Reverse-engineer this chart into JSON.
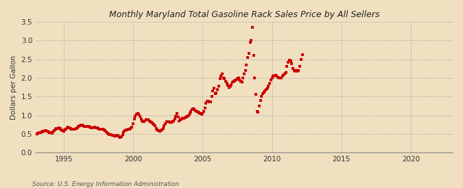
{
  "title": "Monthly Maryland Total Gasoline Rack Sales Price by All Sellers",
  "ylabel": "Dollars per Gallon",
  "source": "Source: U.S. Energy Information Administration",
  "background_color": "#f0e0c0",
  "plot_bg_color": "#f0e0c0",
  "marker_color": "#cc0000",
  "xlim": [
    1993.0,
    2023.0
  ],
  "ylim": [
    0.0,
    3.5
  ],
  "xticks": [
    1995,
    2000,
    2005,
    2010,
    2015,
    2020
  ],
  "yticks": [
    0.0,
    0.5,
    1.0,
    1.5,
    2.0,
    2.5,
    3.0,
    3.5
  ],
  "dates": [
    1993.08,
    1993.17,
    1993.25,
    1993.33,
    1993.42,
    1993.5,
    1993.58,
    1993.67,
    1993.75,
    1993.83,
    1993.92,
    1994.0,
    1994.08,
    1994.17,
    1994.25,
    1994.33,
    1994.42,
    1994.5,
    1994.58,
    1994.67,
    1994.75,
    1994.83,
    1994.92,
    1995.0,
    1995.08,
    1995.17,
    1995.25,
    1995.33,
    1995.42,
    1995.5,
    1995.58,
    1995.67,
    1995.75,
    1995.83,
    1995.92,
    1996.0,
    1996.08,
    1996.17,
    1996.25,
    1996.33,
    1996.42,
    1996.5,
    1996.58,
    1996.67,
    1996.75,
    1996.83,
    1996.92,
    1997.0,
    1997.08,
    1997.17,
    1997.25,
    1997.33,
    1997.42,
    1997.5,
    1997.58,
    1997.67,
    1997.75,
    1997.83,
    1997.92,
    1998.0,
    1998.08,
    1998.17,
    1998.25,
    1998.33,
    1998.42,
    1998.5,
    1998.58,
    1998.67,
    1998.75,
    1998.83,
    1998.92,
    1999.0,
    1999.08,
    1999.17,
    1999.25,
    1999.33,
    1999.42,
    1999.5,
    1999.58,
    1999.67,
    1999.75,
    1999.83,
    1999.92,
    2000.0,
    2000.08,
    2000.17,
    2000.25,
    2000.33,
    2000.42,
    2000.5,
    2000.58,
    2000.67,
    2000.75,
    2000.83,
    2000.92,
    2001.0,
    2001.08,
    2001.17,
    2001.25,
    2001.33,
    2001.42,
    2001.5,
    2001.58,
    2001.67,
    2001.75,
    2001.83,
    2001.92,
    2002.0,
    2002.08,
    2002.17,
    2002.25,
    2002.33,
    2002.42,
    2002.5,
    2002.58,
    2002.67,
    2002.75,
    2002.83,
    2002.92,
    2003.0,
    2003.08,
    2003.17,
    2003.25,
    2003.33,
    2003.42,
    2003.5,
    2003.58,
    2003.67,
    2003.75,
    2003.83,
    2003.92,
    2004.0,
    2004.08,
    2004.17,
    2004.25,
    2004.33,
    2004.42,
    2004.5,
    2004.58,
    2004.67,
    2004.75,
    2004.83,
    2004.92,
    2005.0,
    2005.08,
    2005.17,
    2005.25,
    2005.33,
    2005.42,
    2005.5,
    2005.58,
    2005.67,
    2005.75,
    2005.83,
    2005.92,
    2006.0,
    2006.08,
    2006.17,
    2006.25,
    2006.33,
    2006.42,
    2006.5,
    2006.58,
    2006.67,
    2006.75,
    2006.83,
    2006.92,
    2007.0,
    2007.08,
    2007.17,
    2007.25,
    2007.33,
    2007.42,
    2007.5,
    2007.58,
    2007.67,
    2007.75,
    2007.83,
    2007.92,
    2008.0,
    2008.08,
    2008.17,
    2008.25,
    2008.33,
    2008.42,
    2008.5,
    2008.58,
    2008.67,
    2008.75,
    2008.83,
    2008.92,
    2009.0,
    2009.08,
    2009.17,
    2009.25,
    2009.33,
    2009.42,
    2009.5,
    2009.58,
    2009.67,
    2009.75,
    2009.83,
    2009.92,
    2010.0,
    2010.08,
    2010.17,
    2010.25,
    2010.33,
    2010.42,
    2010.5,
    2010.58,
    2010.67,
    2010.75,
    2010.83,
    2010.92,
    2011.0,
    2011.08,
    2011.17,
    2011.25,
    2011.33,
    2011.42,
    2011.5,
    2011.58,
    2011.67,
    2011.75,
    2011.83,
    2011.92,
    2012.0,
    2012.08,
    2012.17
  ],
  "values": [
    0.5,
    0.52,
    0.53,
    0.54,
    0.55,
    0.57,
    0.57,
    0.58,
    0.58,
    0.57,
    0.56,
    0.54,
    0.53,
    0.52,
    0.55,
    0.58,
    0.62,
    0.64,
    0.65,
    0.66,
    0.64,
    0.6,
    0.58,
    0.57,
    0.6,
    0.63,
    0.67,
    0.68,
    0.67,
    0.65,
    0.63,
    0.62,
    0.62,
    0.63,
    0.65,
    0.67,
    0.7,
    0.72,
    0.73,
    0.73,
    0.72,
    0.7,
    0.7,
    0.7,
    0.7,
    0.7,
    0.68,
    0.67,
    0.67,
    0.68,
    0.68,
    0.67,
    0.66,
    0.65,
    0.63,
    0.62,
    0.62,
    0.62,
    0.6,
    0.58,
    0.55,
    0.52,
    0.5,
    0.48,
    0.47,
    0.46,
    0.46,
    0.45,
    0.45,
    0.46,
    0.46,
    0.42,
    0.4,
    0.43,
    0.48,
    0.55,
    0.58,
    0.6,
    0.61,
    0.62,
    0.63,
    0.65,
    0.68,
    0.78,
    0.9,
    0.98,
    1.03,
    1.05,
    1.02,
    0.98,
    0.9,
    0.85,
    0.83,
    0.85,
    0.88,
    0.88,
    0.88,
    0.85,
    0.82,
    0.8,
    0.78,
    0.75,
    0.72,
    0.65,
    0.6,
    0.58,
    0.57,
    0.58,
    0.6,
    0.65,
    0.72,
    0.78,
    0.82,
    0.83,
    0.82,
    0.8,
    0.8,
    0.82,
    0.85,
    0.9,
    0.97,
    1.05,
    0.95,
    0.85,
    0.88,
    0.9,
    0.92,
    0.92,
    0.93,
    0.95,
    0.97,
    1.0,
    1.05,
    1.1,
    1.15,
    1.18,
    1.15,
    1.12,
    1.1,
    1.08,
    1.07,
    1.05,
    1.03,
    1.05,
    1.1,
    1.2,
    1.32,
    1.38,
    1.38,
    1.35,
    1.35,
    1.5,
    1.65,
    1.72,
    1.58,
    1.6,
    1.68,
    1.78,
    1.98,
    2.05,
    2.1,
    2.0,
    1.98,
    1.9,
    1.85,
    1.8,
    1.75,
    1.78,
    1.82,
    1.88,
    1.9,
    1.92,
    1.95,
    1.98,
    2.0,
    1.95,
    1.9,
    1.88,
    2.0,
    2.1,
    2.2,
    2.35,
    2.55,
    2.65,
    2.95,
    3.0,
    3.35,
    2.6,
    2.0,
    1.55,
    1.1,
    1.08,
    1.25,
    1.4,
    1.5,
    1.58,
    1.62,
    1.65,
    1.68,
    1.72,
    1.78,
    1.85,
    1.95,
    2.0,
    2.05,
    2.05,
    2.08,
    2.05,
    2.02,
    2.0,
    2.0,
    2.0,
    2.05,
    2.08,
    2.1,
    2.15,
    2.3,
    2.42,
    2.48,
    2.45,
    2.38,
    2.25,
    2.2,
    2.18,
    2.2,
    2.18,
    2.2,
    2.3,
    2.5,
    2.62
  ]
}
